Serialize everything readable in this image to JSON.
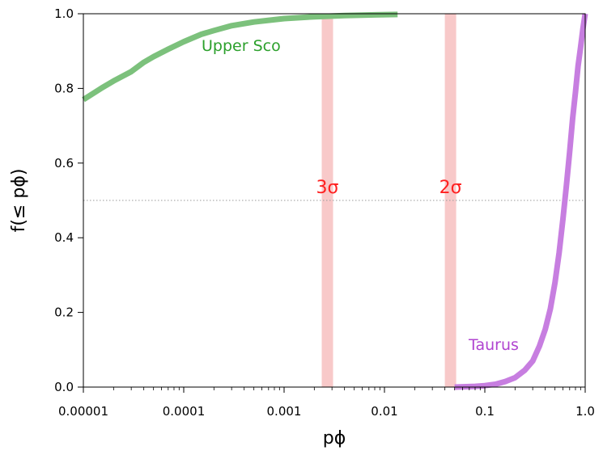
{
  "chart_data": {
    "type": "line",
    "xscale": "log",
    "xlim": [
      1e-05,
      1.0
    ],
    "ylim": [
      0.0,
      1.0
    ],
    "xlabel": "pϕ",
    "ylabel": "f(≤ pϕ)",
    "x_tick_labels": [
      "0.00001",
      "0.0001",
      "0.001",
      "0.01",
      "0.1",
      "1.0"
    ],
    "x_tick_values": [
      1e-05,
      0.0001,
      0.001,
      0.01,
      0.1,
      1.0
    ],
    "y_tick_labels": [
      "0.0",
      "0.2",
      "0.4",
      "0.6",
      "0.8",
      "1.0"
    ],
    "y_tick_values": [
      0.0,
      0.2,
      0.4,
      0.6,
      0.8,
      1.0
    ],
    "reference_line": {
      "y": 0.5,
      "style": "dotted",
      "color": "#999999"
    },
    "bands": [
      {
        "label": "3σ",
        "x_center": 0.0027,
        "color": "#f8c9c9",
        "label_color": "#ff2020"
      },
      {
        "label": "2σ",
        "x_center": 0.0455,
        "color": "#f8c9c9",
        "label_color": "#ff2020"
      }
    ],
    "series": [
      {
        "name": "Upper Sco",
        "color": "#7cc17c",
        "label_color": "#2ca02c",
        "points": [
          [
            1e-05,
            0.77
          ],
          [
            1.5e-05,
            0.8
          ],
          [
            2e-05,
            0.82
          ],
          [
            3e-05,
            0.845
          ],
          [
            4e-05,
            0.87
          ],
          [
            5e-05,
            0.885
          ],
          [
            7e-05,
            0.905
          ],
          [
            0.0001,
            0.925
          ],
          [
            0.00015,
            0.945
          ],
          [
            0.0002,
            0.955
          ],
          [
            0.0003,
            0.968
          ],
          [
            0.0005,
            0.978
          ],
          [
            0.001,
            0.987
          ],
          [
            0.002,
            0.992
          ],
          [
            0.004,
            0.995
          ],
          [
            0.008,
            0.997
          ],
          [
            0.0135,
            0.998
          ]
        ]
      },
      {
        "name": "Taurus",
        "color": "#c77ee0",
        "label_color": "#b044d0",
        "points": [
          [
            0.05,
            0.0
          ],
          [
            0.08,
            0.002
          ],
          [
            0.1,
            0.004
          ],
          [
            0.13,
            0.008
          ],
          [
            0.16,
            0.015
          ],
          [
            0.2,
            0.025
          ],
          [
            0.25,
            0.045
          ],
          [
            0.3,
            0.07
          ],
          [
            0.35,
            0.11
          ],
          [
            0.4,
            0.155
          ],
          [
            0.45,
            0.21
          ],
          [
            0.5,
            0.28
          ],
          [
            0.55,
            0.36
          ],
          [
            0.6,
            0.45
          ],
          [
            0.65,
            0.54
          ],
          [
            0.7,
            0.63
          ],
          [
            0.75,
            0.72
          ],
          [
            0.8,
            0.79
          ],
          [
            0.85,
            0.86
          ],
          [
            0.9,
            0.91
          ],
          [
            0.95,
            0.96
          ],
          [
            1.0,
            1.0
          ]
        ]
      }
    ]
  }
}
